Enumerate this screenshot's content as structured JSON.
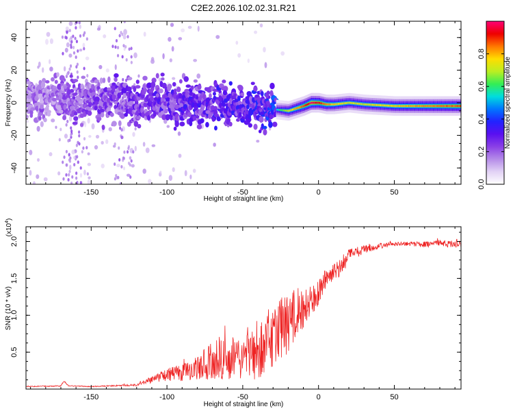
{
  "figure": {
    "title": "C2E2.2026.102.02.31.R21"
  },
  "colors": {
    "snr_line": "#ee2222",
    "axis": "#000000",
    "background": "#ffffff",
    "colormap_stops": [
      "#ffffff",
      "#e2d2f5",
      "#b58ce8",
      "#8a40e6",
      "#5a10f0",
      "#2222ff",
      "#0077ff",
      "#00dddd",
      "#33ee55",
      "#bbee22",
      "#ffdd00",
      "#ff7700",
      "#ee0000",
      "#ff0077"
    ]
  },
  "chart_data": [
    {
      "id": "spectrogram",
      "type": "heatmap",
      "xlabel": "Height of straight line (km)",
      "ylabel": "Frequency (Hz)",
      "xlim": [
        -193,
        94
      ],
      "ylim": [
        -50,
        50
      ],
      "x_ticks": [
        -150,
        -100,
        -50,
        0,
        50
      ],
      "y_ticks": [
        -40,
        -20,
        0,
        20,
        40
      ],
      "x_tick_labels": [
        "-150",
        "-100",
        "-50",
        "0",
        "50"
      ],
      "y_tick_labels": [
        "-40",
        "-20",
        "0",
        "20",
        "40"
      ],
      "colorbar": {
        "label": "Normalized spectral amplitude",
        "range": [
          0,
          1
        ],
        "ticks": [
          0,
          0.2,
          0.4,
          0.6,
          0.8
        ],
        "tick_labels": [
          "0.0",
          "0.2",
          "0.4",
          "0.6",
          "0.8"
        ]
      },
      "ridge": {
        "x": [
          -193,
          -150,
          -100,
          -50,
          -30,
          -20,
          -10,
          -5,
          0,
          5,
          10,
          20,
          30,
          50,
          70,
          94
        ],
        "frequency": [
          3,
          2,
          0,
          -2,
          -4,
          -5,
          -2,
          0,
          0,
          -1,
          -1,
          0,
          -1,
          -2,
          -2,
          -2
        ],
        "peak_amplitude": [
          0.22,
          0.28,
          0.35,
          0.38,
          0.45,
          0.7,
          0.85,
          0.95,
          0.9,
          0.8,
          0.75,
          0.7,
          0.7,
          0.75,
          0.8,
          0.85
        ]
      }
    },
    {
      "id": "snr",
      "type": "line",
      "xlabel": "Height of straight line (km)",
      "ylabel": "SNR (10 * v/v)",
      "scale_label": "(x10",
      "scale_exponent": "4",
      "xlim": [
        -193,
        94
      ],
      "ylim": [
        0,
        22000
      ],
      "x_ticks": [
        -150,
        -100,
        -50,
        0,
        50
      ],
      "y_ticks": [
        5000,
        10000,
        15000,
        20000
      ],
      "x_tick_labels": [
        "-150",
        "-100",
        "-50",
        "0",
        "50"
      ],
      "y_tick_labels": [
        "0.5",
        "1.0",
        "1.5",
        "2.0"
      ],
      "series": [
        {
          "name": "SNR",
          "envelope_x": [
            -193,
            -170,
            -168,
            -165,
            -150,
            -120,
            -110,
            -100,
            -90,
            -80,
            -70,
            -60,
            -50,
            -40,
            -30,
            -25,
            -20,
            -15,
            -10,
            -5,
            0,
            5,
            10,
            15,
            20,
            30,
            40,
            50,
            60,
            70,
            80,
            94
          ],
          "envelope_y": [
            400,
            500,
            1200,
            500,
            400,
            700,
            1800,
            2800,
            3400,
            4500,
            6500,
            8000,
            7000,
            8500,
            12000,
            13000,
            12000,
            14000,
            13500,
            14000,
            15000,
            16500,
            17000,
            18000,
            19000,
            19500,
            19800,
            20000,
            20000,
            20000,
            20200,
            20200
          ],
          "noise_fraction": [
            0.3,
            0.3,
            0.2,
            0.3,
            0.3,
            0.4,
            0.55,
            0.6,
            0.7,
            0.75,
            0.8,
            0.85,
            0.8,
            0.85,
            0.75,
            0.7,
            0.6,
            0.5,
            0.4,
            0.3,
            0.25,
            0.2,
            0.15,
            0.15,
            0.1,
            0.06,
            0.04,
            0.03,
            0.03,
            0.04,
            0.04,
            0.06
          ]
        }
      ]
    }
  ]
}
